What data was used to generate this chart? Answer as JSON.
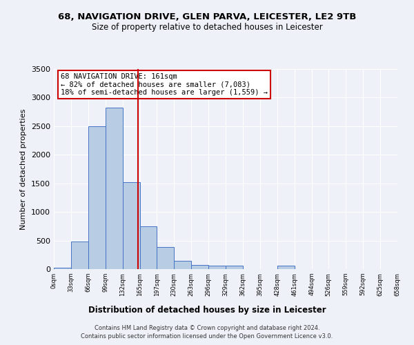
{
  "title1": "68, NAVIGATION DRIVE, GLEN PARVA, LEICESTER, LE2 9TB",
  "title2": "Size of property relative to detached houses in Leicester",
  "xlabel": "Distribution of detached houses by size in Leicester",
  "ylabel": "Number of detached properties",
  "bin_edges": [
    0,
    33,
    66,
    99,
    132,
    165,
    197,
    230,
    263,
    296,
    329,
    362,
    395,
    428,
    461,
    494,
    526,
    559,
    592,
    625,
    658
  ],
  "bin_counts": [
    30,
    480,
    2500,
    2820,
    1520,
    750,
    390,
    150,
    75,
    55,
    55,
    0,
    0,
    55,
    0,
    0,
    0,
    0,
    0,
    0
  ],
  "bar_color": "#b8cce4",
  "bar_edge_color": "#4472c4",
  "property_size": 161,
  "vline_color": "#cc0000",
  "annotation_text": "68 NAVIGATION DRIVE: 161sqm\n← 82% of detached houses are smaller (7,083)\n18% of semi-detached houses are larger (1,559) →",
  "annotation_box_color": "#ffffff",
  "annotation_box_edge": "#cc0000",
  "footer1": "Contains HM Land Registry data © Crown copyright and database right 2024.",
  "footer2": "Contains public sector information licensed under the Open Government Licence v3.0.",
  "background_color": "#eef2f8",
  "ylim": [
    0,
    3500
  ],
  "yticks": [
    0,
    500,
    1000,
    1500,
    2000,
    2500,
    3000,
    3500
  ]
}
